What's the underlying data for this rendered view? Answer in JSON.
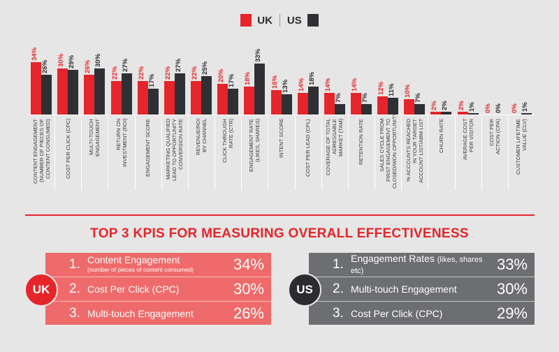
{
  "legend": {
    "uk": "UK",
    "us": "US"
  },
  "colors": {
    "uk": "#e5252a",
    "us": "#2f3036",
    "uk_panel": "#ef6a6a",
    "us_panel": "#6d6e71",
    "title": "#e5252a"
  },
  "chart_data": {
    "type": "bar",
    "categories": [
      "CONTENT ENGAGEMENT\n(NUMBER OF PIECES OF\nCONTENT CONSUMED)",
      "COST PER CLICK (CPC)",
      "MULTI-TOUCH\nENGAGEMENT",
      "RETURN ON\nINVESTMENT (ROI)",
      "ENGAGEMENT SCORE",
      "MARKETING QUALIFIED\nLEAD TO OPPORTUNITY\nCONVERSION RATE",
      "REVENUE/ROI\nBY CHANNEL",
      "CLICK THROUGH\nRATE (CTR)",
      "ENGAGEMENT RATE\n(LIKES, SHARES)",
      "INTENT SCORE",
      "COST PER LEAD (CPL)",
      "COVERAGE OF TOTAL\nADRESSABLE\nMARKET (TAM)",
      "RETENTION RATE",
      "SALES CYCLE FROM\nFIRST ENGAGEMENT TO\nCLOSED/WON OPPORTUNITY",
      "% ACCOUNTS REACHED\nIN YOUR TARGET\nACCOUNT LIST/ABM LIST",
      "CHURN RATE",
      "AVERAGE COST\nPER VISITOR",
      "COST PER\nACTION (CPA)",
      "CUSTOMER LIFETIME\nVALUE (CLV)"
    ],
    "series": [
      {
        "name": "UK",
        "values": [
          34,
          30,
          26,
          22,
          22,
          22,
          22,
          20,
          18,
          16,
          14,
          14,
          14,
          12,
          10,
          2,
          2,
          0,
          0
        ]
      },
      {
        "name": "US",
        "values": [
          26,
          29,
          30,
          27,
          17,
          27,
          25,
          17,
          33,
          13,
          18,
          7,
          7,
          11,
          7,
          2,
          1,
          0,
          1
        ]
      }
    ],
    "unit": "%",
    "ylim": [
      0,
      35
    ]
  },
  "section_title": "TOP 3 KPIS FOR MEASURING OVERALL EFFECTIVENESS",
  "uk_top3": {
    "badge": "UK",
    "items": [
      {
        "rank": "1.",
        "label": "Content Engagement",
        "sub": "(number of pieces of content consumed)",
        "value": "34%"
      },
      {
        "rank": "2.",
        "label": "Cost Per Click (CPC)",
        "sub": "",
        "value": "30%"
      },
      {
        "rank": "3.",
        "label": "Multi-touch Engagement",
        "sub": "",
        "value": "26%"
      }
    ]
  },
  "us_top3": {
    "badge": "US",
    "items": [
      {
        "rank": "1.",
        "label": "Engagement Rates",
        "sub": "(likes, shares etc)",
        "value": "33%"
      },
      {
        "rank": "2.",
        "label": "Multi-touch Engagement",
        "sub": "",
        "value": "30%"
      },
      {
        "rank": "3.",
        "label": "Cost Per Click (CPC)",
        "sub": "",
        "value": "29%"
      }
    ]
  }
}
